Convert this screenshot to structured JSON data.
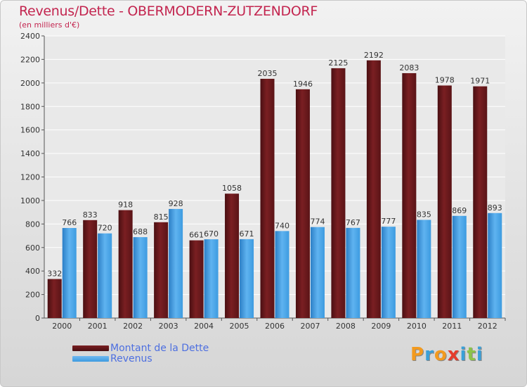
{
  "title": "Revenus/Dette - OBERMODERN-ZUTZENDORF",
  "subtitle": "(en milliers d'€)",
  "legend": {
    "debt_label": "Montant de la Dette",
    "revenue_label": "Revenus"
  },
  "logo": {
    "text": "Proxiti"
  },
  "colors": {
    "debt": "#7a1f22",
    "revenue": "#3d9be0",
    "title": "#c3254f",
    "legend_text": "#4d6fe0"
  },
  "chart_data": {
    "type": "bar",
    "categories": [
      "2000",
      "2001",
      "2002",
      "2003",
      "2004",
      "2005",
      "2006",
      "2007",
      "2008",
      "2009",
      "2010",
      "2011",
      "2012"
    ],
    "series": [
      {
        "name": "Montant de la Dette",
        "values": [
          332,
          833,
          918,
          815,
          661,
          1058,
          2035,
          1946,
          2125,
          2192,
          2083,
          1978,
          1971
        ]
      },
      {
        "name": "Revenus",
        "values": [
          766,
          720,
          688,
          928,
          670,
          671,
          740,
          774,
          767,
          777,
          835,
          869,
          893
        ]
      }
    ],
    "ylim": [
      0,
      2400
    ],
    "yticks": [
      0,
      200,
      400,
      600,
      800,
      1000,
      1200,
      1400,
      1600,
      1800,
      2000,
      2200,
      2400
    ],
    "grid": true,
    "legend_position": "bottom-left"
  }
}
